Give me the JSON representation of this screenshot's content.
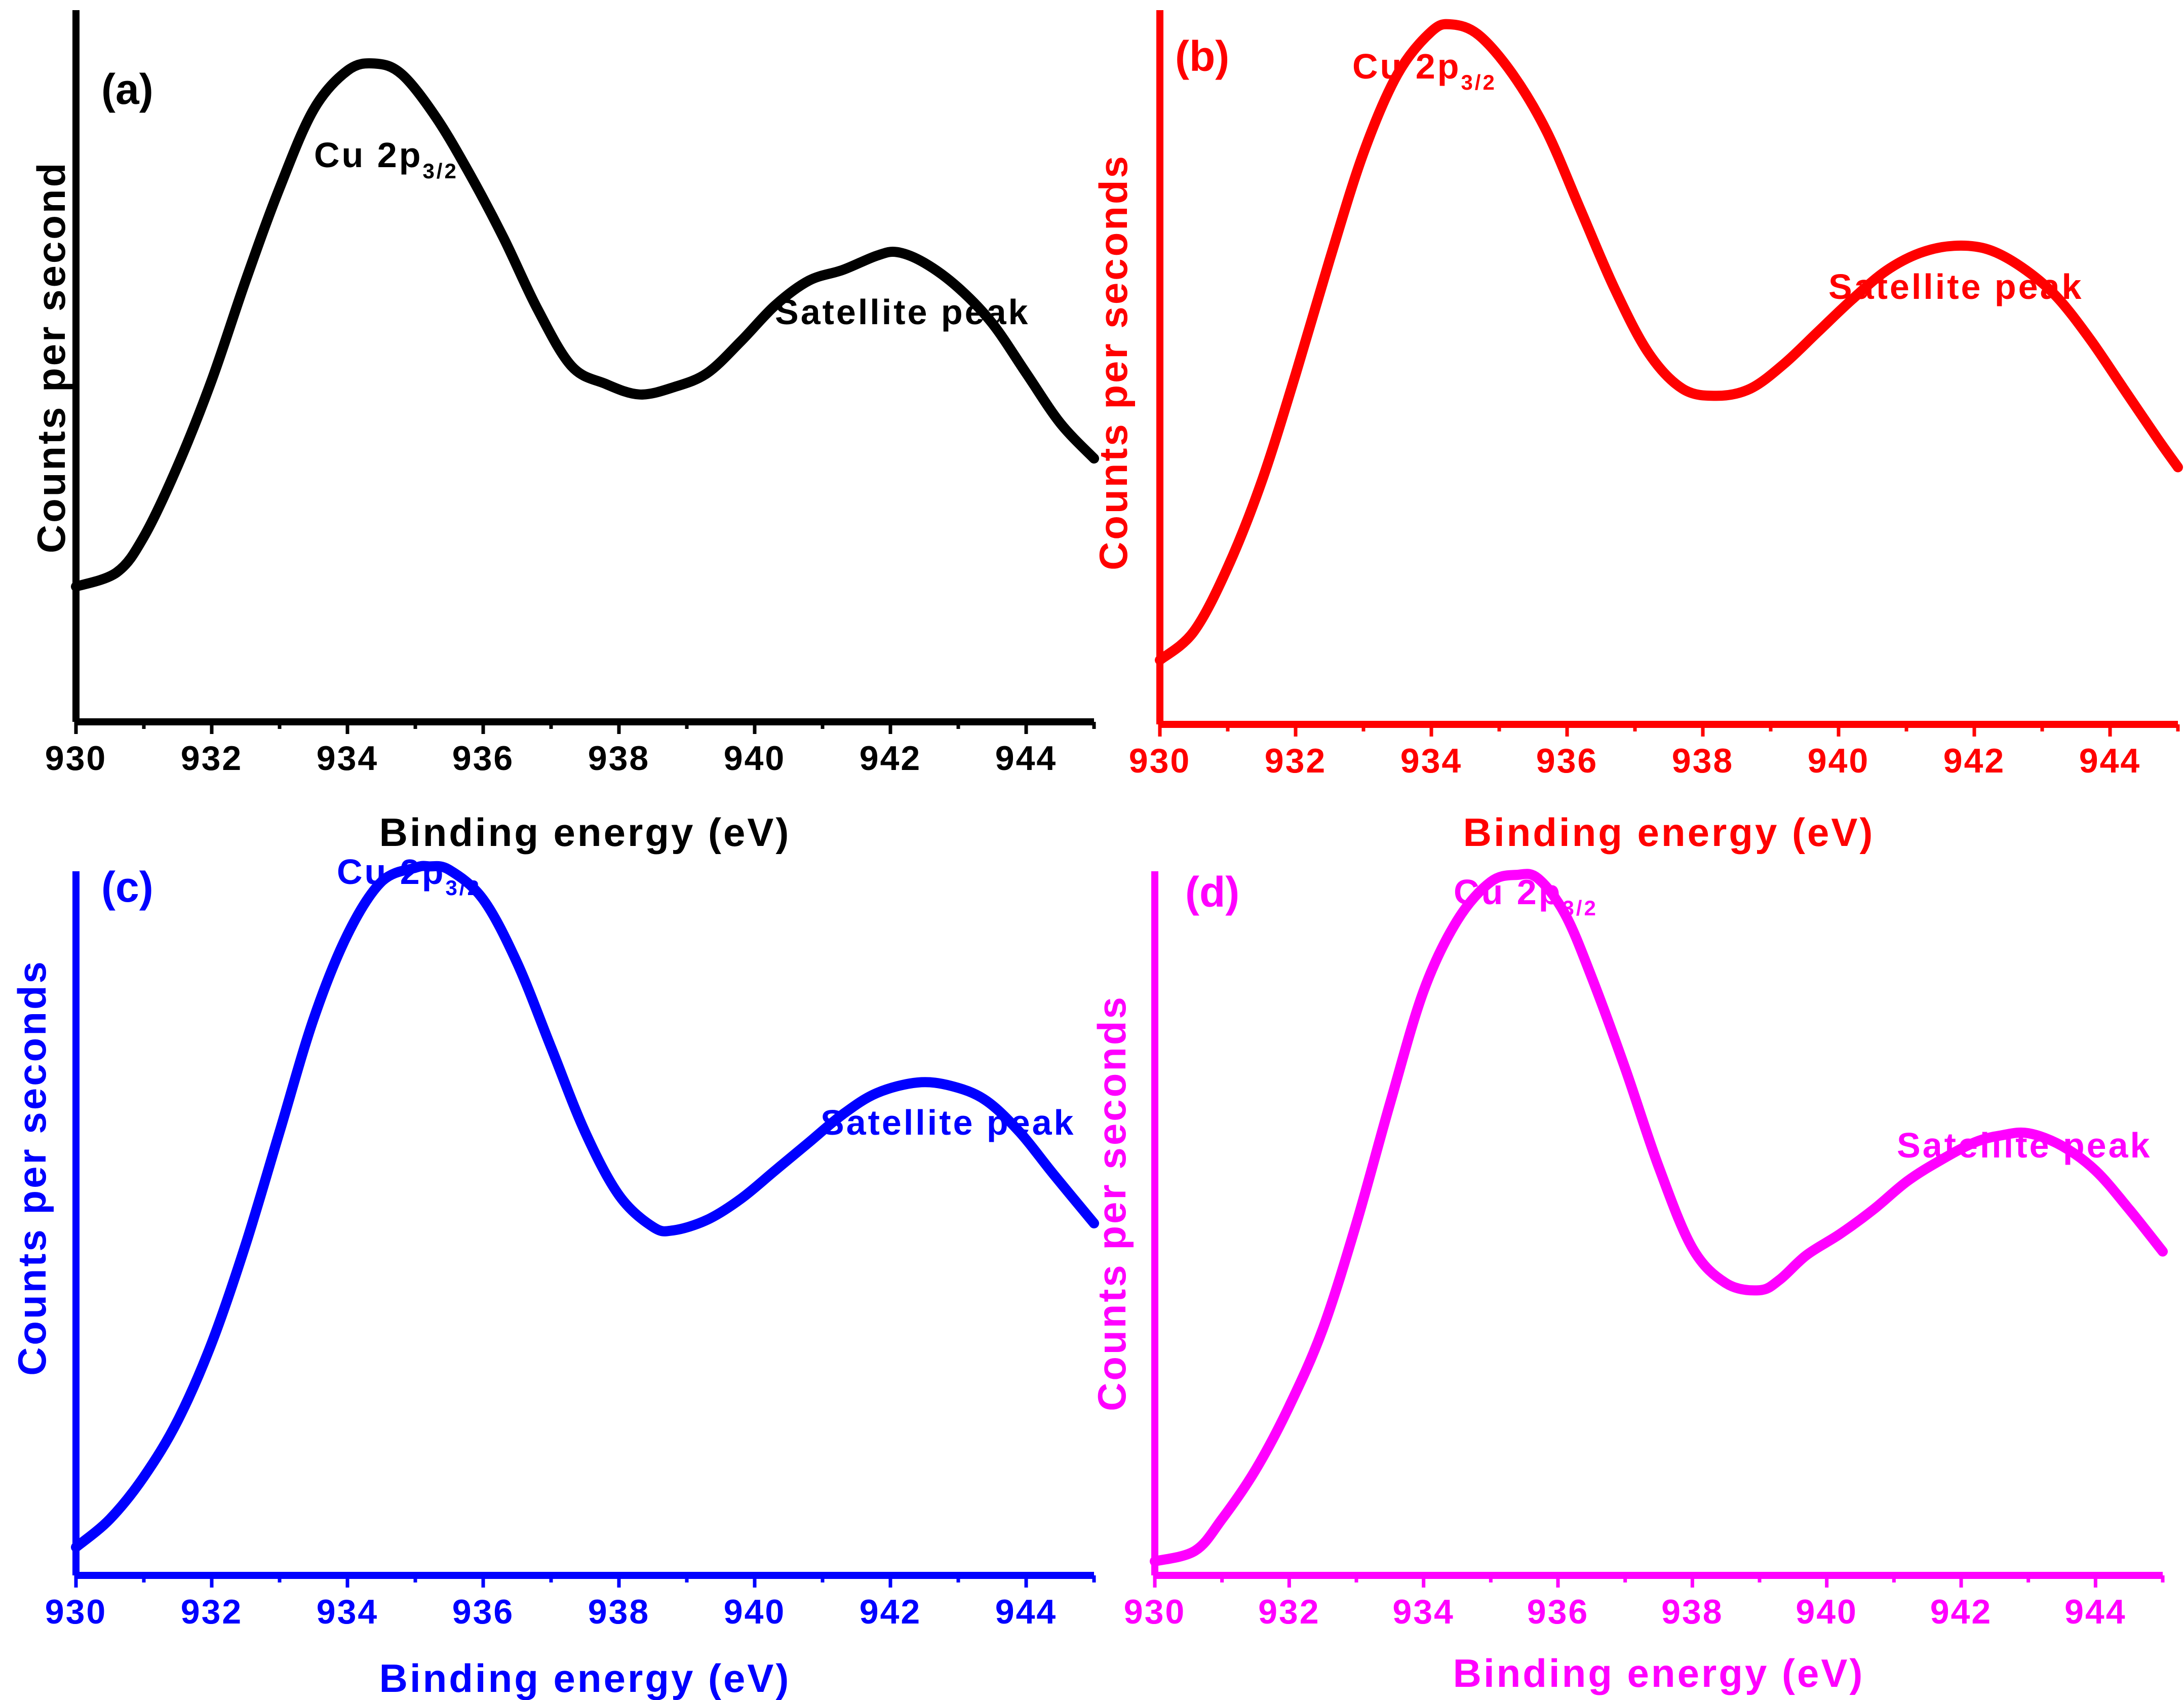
{
  "chart_data": [
    {
      "type": "line",
      "panel_label": "(a)",
      "color": "#000000",
      "xlabel": "Binding energy (eV)",
      "ylabel": "Counts per second",
      "xlim": [
        930,
        945
      ],
      "ylim": [
        0,
        100
      ],
      "x_ticks": [
        "930",
        "932",
        "934",
        "936",
        "938",
        "940",
        "942",
        "944"
      ],
      "peak_main_label": "Cu 2p",
      "peak_main_sub": "3/2",
      "peak_sat_label": "Satellite peak",
      "series": [
        {
          "name": "a",
          "x": [
            930,
            930.6,
            931,
            931.5,
            932,
            932.5,
            933,
            933.5,
            934,
            934.4,
            934.8,
            935.3,
            935.8,
            936.3,
            936.8,
            937.3,
            937.8,
            938.3,
            938.8,
            939.3,
            939.8,
            940.3,
            940.8,
            941.3,
            941.8,
            942.1,
            942.5,
            943,
            943.5,
            944,
            944.5,
            945
          ],
          "y": [
            19,
            21,
            26,
            36,
            48,
            62,
            75,
            86,
            91.5,
            92.5,
            91,
            85,
            77,
            68,
            58,
            50,
            47.5,
            46,
            47,
            49,
            53.5,
            58.5,
            62,
            63.5,
            65.5,
            66,
            64.5,
            61,
            56,
            49,
            42,
            37
          ]
        }
      ]
    },
    {
      "type": "line",
      "panel_label": "(b)",
      "color": "#ff0000",
      "xlabel": "Binding energy (eV)",
      "ylabel": "Counts per seconds",
      "xlim": [
        930,
        945
      ],
      "ylim": [
        0,
        100
      ],
      "x_ticks": [
        "930",
        "932",
        "934",
        "936",
        "938",
        "940",
        "942",
        "944"
      ],
      "peak_main_label": "Cu 2p",
      "peak_main_sub": "3/2",
      "peak_sat_label": "Satellite peak",
      "series": [
        {
          "name": "b",
          "x": [
            930,
            930.5,
            931,
            931.5,
            932,
            932.5,
            933,
            933.5,
            934,
            934.3,
            934.7,
            935.2,
            935.7,
            936.2,
            936.7,
            937.2,
            937.7,
            938.2,
            938.7,
            939.2,
            939.7,
            940.2,
            940.7,
            941.2,
            941.7,
            942.2,
            942.7,
            943.2,
            943.7,
            944.2,
            944.7,
            945
          ],
          "y": [
            9,
            13,
            22,
            34,
            49,
            65,
            80,
            91,
            97,
            98,
            96.5,
            91,
            83,
            72,
            61,
            52,
            47,
            46,
            47,
            50.5,
            55,
            59.5,
            63.5,
            66,
            67,
            66.5,
            64,
            60,
            54,
            47,
            40,
            36
          ]
        }
      ]
    },
    {
      "type": "line",
      "panel_label": "(c)",
      "color": "#0000ff",
      "xlabel": "Binding energy (eV)",
      "ylabel": "Counts per seconds",
      "xlim": [
        930,
        945
      ],
      "ylim": [
        0,
        100
      ],
      "x_ticks": [
        "930",
        "932",
        "934",
        "936",
        "938",
        "940",
        "942",
        "944"
      ],
      "peak_main_label": "Cu 2p",
      "peak_main_sub": "3/2",
      "peak_sat_label": "Satellite peak",
      "series": [
        {
          "name": "c",
          "x": [
            930,
            930.5,
            931,
            931.5,
            932,
            932.5,
            933,
            933.5,
            934,
            934.5,
            935,
            935.2,
            935.5,
            936,
            936.5,
            937,
            937.5,
            938,
            938.5,
            938.8,
            939.3,
            939.8,
            940.3,
            940.8,
            941.3,
            941.8,
            942.4,
            942.9,
            943.4,
            943.9,
            944.4,
            945
          ],
          "y": [
            4,
            8,
            14,
            22,
            33,
            47,
            63,
            79,
            91,
            98.5,
            100.5,
            100.7,
            100.2,
            96,
            87,
            75,
            63,
            54,
            49.5,
            49,
            50.5,
            53.5,
            57.5,
            61.5,
            65.5,
            68.5,
            70,
            69.5,
            67.5,
            63,
            57,
            50
          ]
        }
      ]
    },
    {
      "type": "line",
      "panel_label": "(d)",
      "color": "#ff00ff",
      "xlabel": "Binding energy (eV)",
      "ylabel": "Counts per seconds",
      "xlim": [
        930,
        945
      ],
      "ylim": [
        0,
        100
      ],
      "x_ticks": [
        "930",
        "932",
        "934",
        "936",
        "938",
        "940",
        "942",
        "944"
      ],
      "peak_main_label": "Cu 2p",
      "peak_main_sub": "3/2",
      "peak_sat_label": "Satellite peak",
      "series": [
        {
          "name": "d",
          "x": [
            930,
            930.6,
            931,
            931.5,
            932,
            932.5,
            933,
            933.5,
            934,
            934.5,
            935,
            935.4,
            935.7,
            936.1,
            936.5,
            937,
            937.5,
            938,
            938.5,
            939,
            939.3,
            939.7,
            940.2,
            940.7,
            941.2,
            941.7,
            942.2,
            942.6,
            943,
            943.5,
            944,
            944.5,
            945
          ],
          "y": [
            2,
            3.5,
            8,
            15,
            24,
            35,
            50,
            67,
            83,
            93,
            98.5,
            99.5,
            99,
            94,
            85,
            72,
            58,
            46.5,
            41.5,
            40.5,
            42,
            45.5,
            48.5,
            52,
            56,
            59,
            61.5,
            62.5,
            62.8,
            61,
            57.5,
            52,
            46
          ]
        }
      ]
    }
  ]
}
